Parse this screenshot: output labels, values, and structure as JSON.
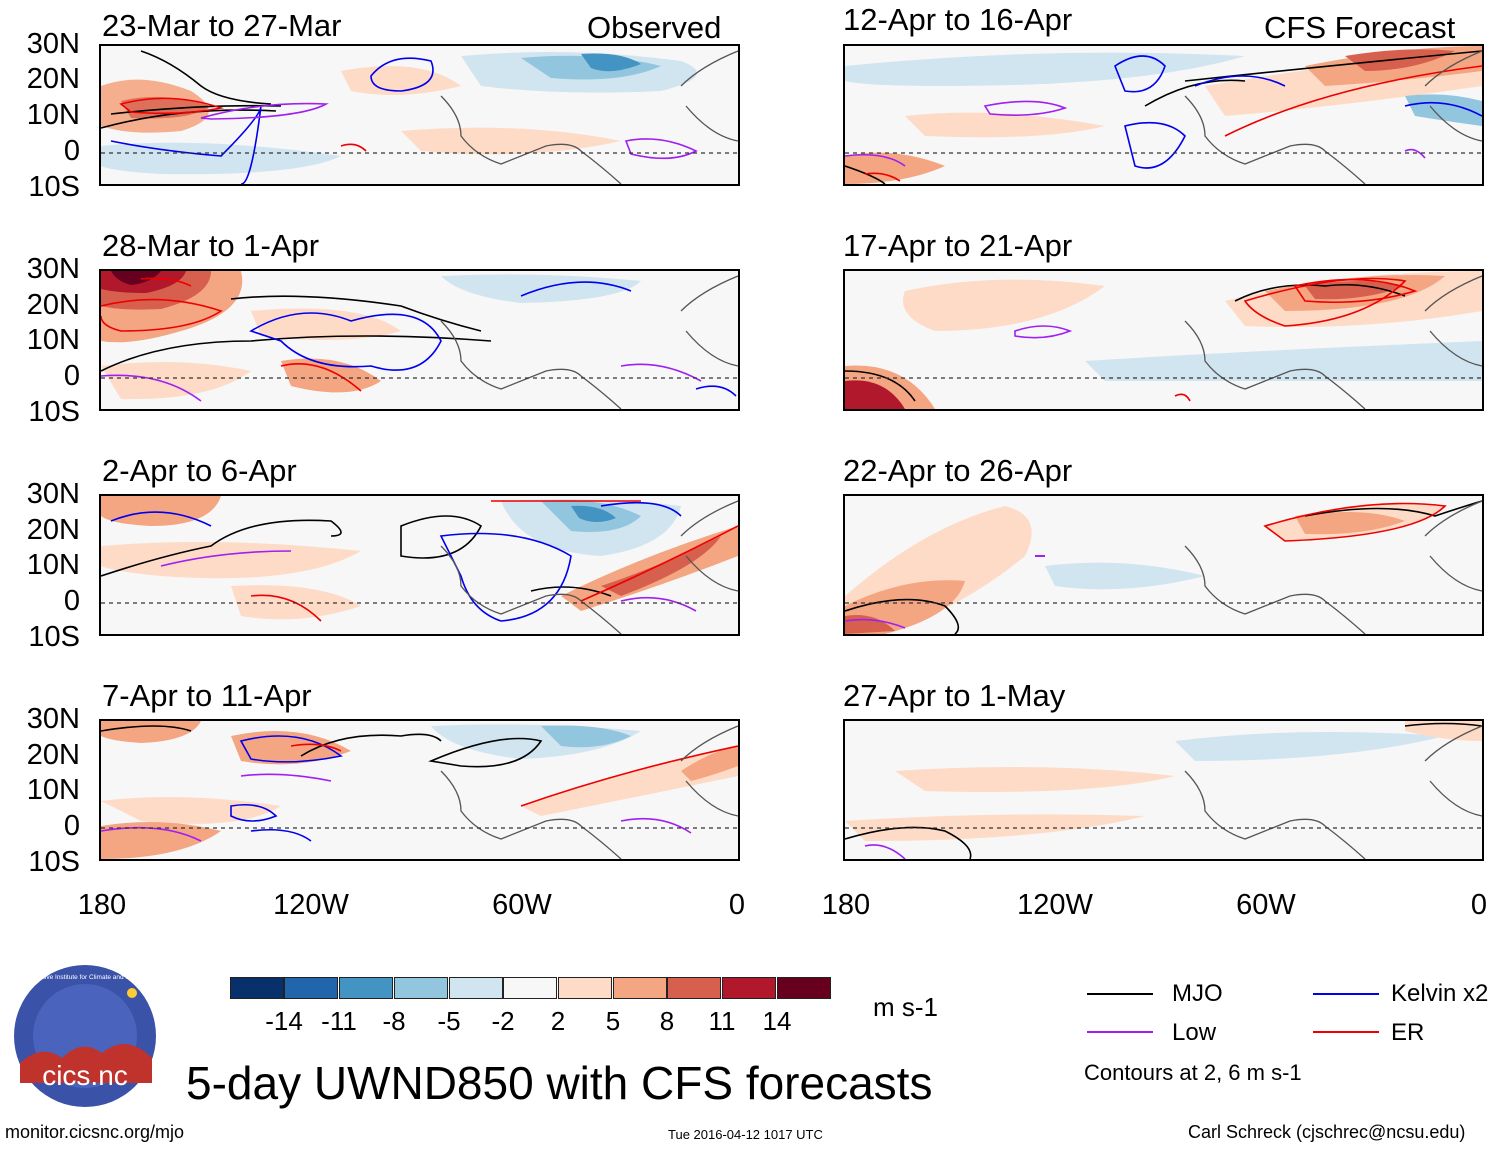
{
  "observed_label": "Observed",
  "forecast_label": "CFS Forecast",
  "lat_labels": [
    "30N",
    "20N",
    "10N",
    "0",
    "10S"
  ],
  "lon_labels": [
    "180",
    "120W",
    "60W",
    "0"
  ],
  "panels_left": [
    {
      "title": "23-Mar to 27-Mar"
    },
    {
      "title": "28-Mar to 1-Apr"
    },
    {
      "title": "2-Apr to 6-Apr"
    },
    {
      "title": "7-Apr to 11-Apr"
    }
  ],
  "panels_right": [
    {
      "title": "12-Apr to 16-Apr"
    },
    {
      "title": "17-Apr to 21-Apr"
    },
    {
      "title": "22-Apr to 26-Apr"
    },
    {
      "title": "27-Apr to 1-May"
    }
  ],
  "colorbar": {
    "colors": [
      "#08306b",
      "#2166ac",
      "#4393c3",
      "#92c5de",
      "#d1e5f0",
      "#f7f7f7",
      "#fddbc7",
      "#f4a582",
      "#d6604d",
      "#b2182b",
      "#67001f"
    ],
    "labels": [
      "-14",
      "-11",
      "-8",
      "-5",
      "-2",
      "2",
      "5",
      "8",
      "11",
      "14"
    ],
    "units": "m s-1"
  },
  "legend": {
    "items": [
      {
        "label": "MJO",
        "color": "#000000"
      },
      {
        "label": "Kelvin x2",
        "color": "#0000ee"
      },
      {
        "label": "Low",
        "color": "#a020f0"
      },
      {
        "label": "ER",
        "color": "#ee0000"
      }
    ],
    "note": "Contours at 2, 6 m s-1"
  },
  "logo_text": "cics.nc",
  "logo_ring_text": "Cooperative Institute for Climate and Satellites",
  "main_title": "5-day UWND850 with CFS forecasts",
  "footer": {
    "left": "monitor.cicsnc.org/mjo",
    "center": "Tue 2016-04-12 1017 UTC",
    "right": "Carl Schreck (cjschrec@ncsu.edu)"
  }
}
